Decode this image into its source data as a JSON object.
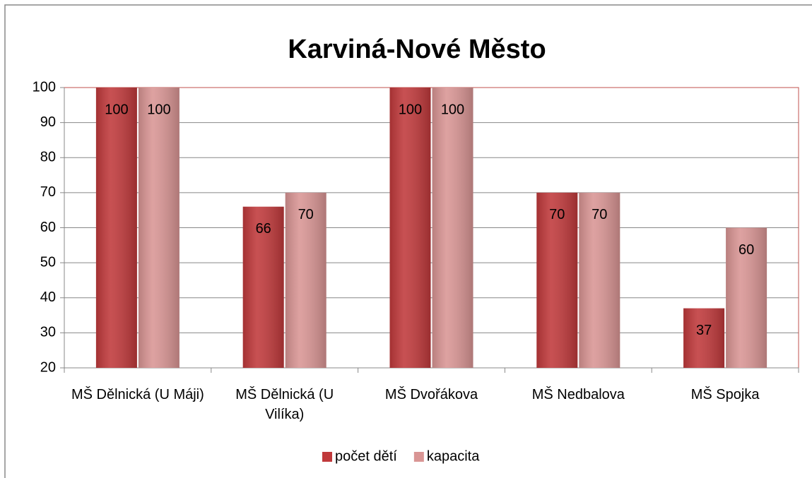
{
  "chart_data": {
    "type": "bar",
    "title": "Karviná-Nové Město",
    "categories": [
      "MŠ Dělnická (U Máji)",
      "MŠ Dělnická (U Vilíka)",
      "MŠ Dvořákova",
      "MŠ Nedbalova",
      "MŠ Spojka"
    ],
    "series": [
      {
        "name": "počet dětí",
        "color": "#c0393b",
        "values": [
          100,
          66,
          100,
          70,
          37
        ]
      },
      {
        "name": "kapacita",
        "color": "#d99594",
        "values": [
          100,
          70,
          100,
          70,
          60
        ]
      }
    ],
    "ylim": [
      20,
      100
    ],
    "yticks": [
      20,
      30,
      40,
      50,
      60,
      70,
      80,
      90,
      100
    ],
    "grid": true,
    "legend": "bottom"
  }
}
